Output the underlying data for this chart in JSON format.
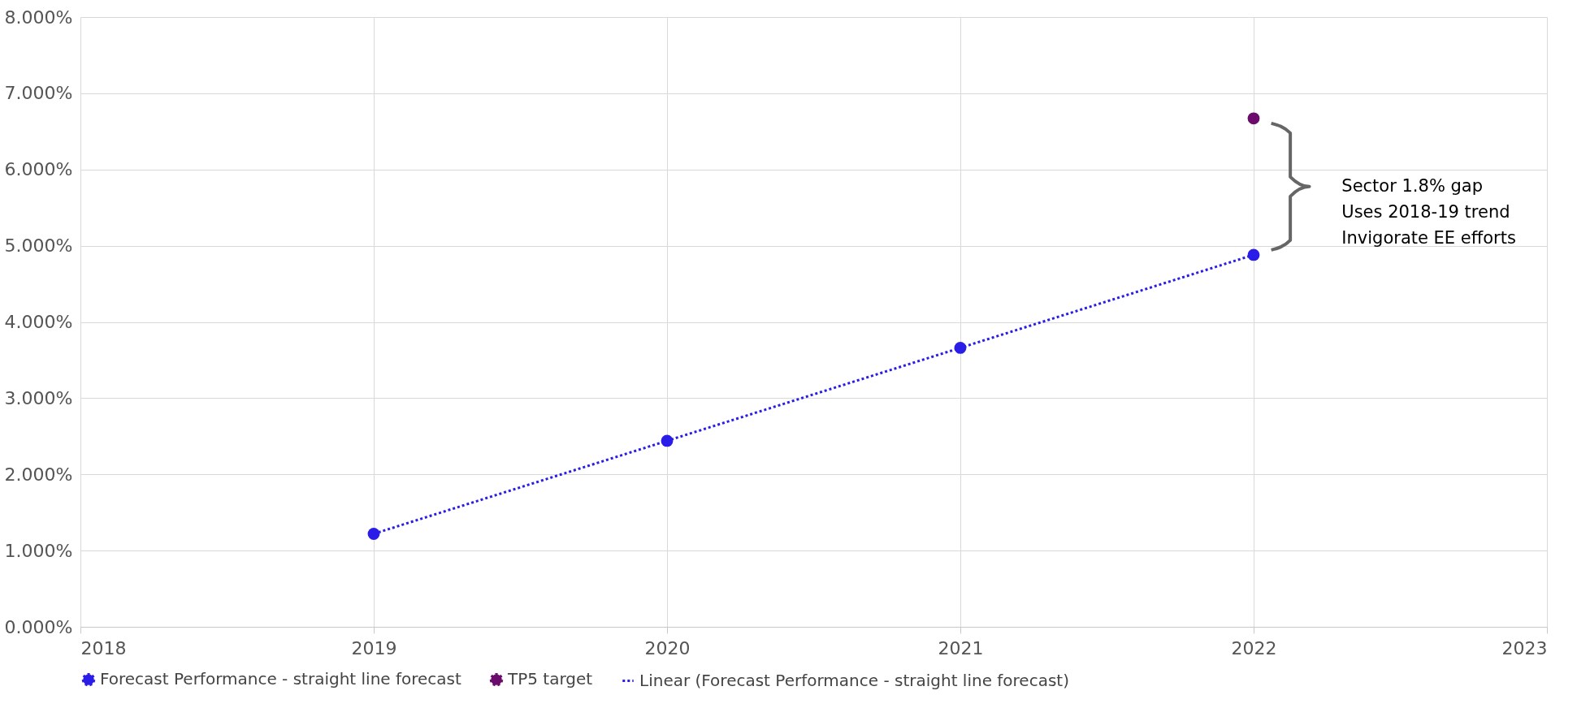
{
  "chart_data": {
    "type": "scatter",
    "xlim": [
      2018,
      2023
    ],
    "xticks": [
      2018,
      2019,
      2020,
      2021,
      2022,
      2023
    ],
    "ylim": [
      0,
      8
    ],
    "yticks": [
      {
        "value": 0,
        "label": "0.000%"
      },
      {
        "value": 1,
        "label": "1.000%"
      },
      {
        "value": 2,
        "label": "2.000%"
      },
      {
        "value": 3,
        "label": "3.000%"
      },
      {
        "value": 4,
        "label": "4.000%"
      },
      {
        "value": 5,
        "label": "5.000%"
      },
      {
        "value": 6,
        "label": "6.000%"
      },
      {
        "value": 7,
        "label": "7.000%"
      },
      {
        "value": 8,
        "label": "8.000%"
      }
    ],
    "grid": true,
    "legend": "bottom",
    "marker": "circle",
    "series": [
      {
        "name": "Forecast Performance - straight line forecast",
        "color": "#2b1de8",
        "x": [
          2019,
          2020,
          2021,
          2022
        ],
        "values": [
          1.22,
          2.44,
          3.66,
          4.88
        ]
      },
      {
        "name": "TP5 target",
        "color": "#6b0b6b",
        "x": [
          2022
        ],
        "values": [
          6.67
        ]
      },
      {
        "name": "Linear (Forecast Performance - straight line forecast)",
        "type": "line",
        "color": "#2b1de8",
        "line_style": "dotted",
        "marker": "none",
        "x": [
          2019,
          2022
        ],
        "values": [
          1.22,
          4.88
        ]
      }
    ],
    "annotations": [
      "Sector 1.8% gap",
      "Uses 2018-19 trend",
      "Invigorate EE efforts"
    ]
  }
}
